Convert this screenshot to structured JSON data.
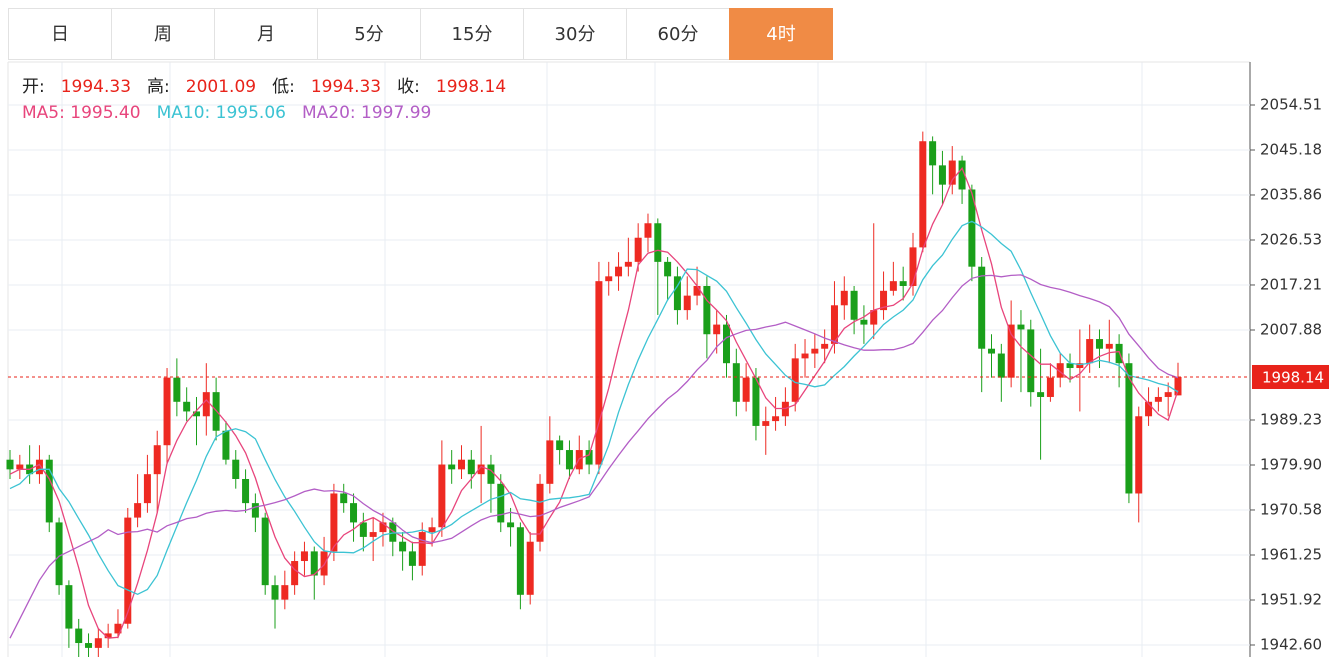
{
  "tabs": [
    "日",
    "周",
    "月",
    "5分",
    "15分",
    "30分",
    "60分",
    "4时"
  ],
  "active_tab": 7,
  "header": {
    "ohlc": [
      {
        "label": "开:",
        "value": "1994.33"
      },
      {
        "label": "高:",
        "value": "2001.09"
      },
      {
        "label": "低:",
        "value": "1994.33"
      },
      {
        "label": "收:",
        "value": "1998.14"
      }
    ]
  },
  "chart_data": {
    "type": "candlestick",
    "up_color": "#ee2a22",
    "down_color": "#1a9f1a",
    "ylim": [
      1940.11,
      2063.42
    ],
    "yticks": [
      2054.51,
      2045.18,
      2035.86,
      2026.53,
      2017.21,
      2007.88,
      1989.23,
      {
        "value": 1979.9,
        "label": "1979.90"
      },
      1970.58,
      1961.25,
      1951.92,
      {
        "value": 1942.6,
        "label": "1942.60"
      }
    ],
    "grid": true,
    "current_price": 1998.14,
    "open": [
      1981,
      1979,
      1980,
      1978,
      1981,
      1968,
      1955,
      1946,
      1943,
      1942,
      1944,
      1945,
      1947,
      1969,
      1972,
      1978,
      1984,
      1998,
      1993,
      1991,
      1990,
      1995,
      1987,
      1981,
      1977,
      1972,
      1969,
      1955,
      1952,
      1955,
      1960,
      1962,
      1957,
      1962,
      1974,
      1972,
      1968,
      1965,
      1966,
      1968,
      1964,
      1962,
      1959,
      1966,
      1967,
      1980,
      1979,
      1981,
      1978,
      1980,
      1976,
      1968,
      1967,
      1953,
      1964,
      1976,
      1985,
      1983,
      1979,
      1983,
      1980,
      2018,
      2019,
      2021,
      2022,
      2027,
      2030,
      2022,
      2019,
      2012,
      2015,
      2017,
      2007,
      2009,
      2001,
      1993,
      1998,
      1988,
      1989,
      1990,
      1993,
      2002,
      2003,
      2004,
      2005,
      2013,
      2016,
      2010,
      2009,
      2012,
      2016,
      2018,
      2017,
      2025,
      2047,
      2042,
      2038,
      2043,
      2037,
      2021,
      2004,
      2003,
      1998,
      2009,
      2008,
      1995,
      1994,
      1998,
      2001,
      2000,
      2001,
      2006,
      2004,
      2005,
      2001,
      1974,
      1990,
      1993,
      1994,
      1994.33
    ],
    "high": [
      1983,
      1982,
      1984,
      1984,
      1982,
      1969,
      1956,
      1948,
      1945,
      1946,
      1947,
      1950,
      1971,
      1978,
      1982,
      1987,
      2000,
      2002,
      1996,
      1994,
      2001,
      1998,
      1989,
      1983,
      1979,
      1974,
      1970,
      1957,
      1958,
      1962,
      1964,
      1963,
      1965,
      1976,
      1976,
      1974,
      1970,
      1969,
      1970,
      1969,
      1966,
      1964,
      1968,
      1969,
      1985,
      1983,
      1984,
      1983,
      1988,
      1982,
      1978,
      1971,
      1968,
      1966,
      1978,
      1990,
      1986,
      1985,
      1986,
      1985,
      2022,
      2022,
      2024,
      2027,
      2030,
      2032,
      2031,
      2023,
      2021,
      2019,
      2021,
      2019,
      2012,
      2011,
      2004,
      2001,
      2000,
      1992,
      1994,
      1996,
      2005,
      2006,
      2007,
      2008,
      2018,
      2019,
      2017,
      2013,
      2030,
      2020,
      2022,
      2021,
      2028,
      2049,
      2048,
      2045,
      2046,
      2044,
      2038,
      2023,
      2007,
      2005,
      2014,
      2012,
      2010,
      2004,
      2001,
      2003,
      2003,
      2008,
      2009,
      2008,
      2010,
      2007,
      2003,
      1992,
      1996,
      1996,
      1997,
      2001.09
    ],
    "low": [
      1977,
      1977,
      1976,
      1976,
      1966,
      1953,
      1942,
      1940,
      1940,
      1940,
      1942,
      1944,
      1946,
      1967,
      1970,
      1970,
      1980,
      1990,
      1989,
      1984,
      1986,
      1985,
      1980,
      1975,
      1970,
      1966,
      1953,
      1946,
      1950,
      1953,
      1957,
      1952,
      1955,
      1960,
      1970,
      1964,
      1962,
      1960,
      1963,
      1961,
      1958,
      1956,
      1957,
      1963,
      1965,
      1976,
      1977,
      1975,
      1972,
      1970,
      1966,
      1963,
      1950,
      1951,
      1962,
      1974,
      1980,
      1977,
      1978,
      1978,
      1978,
      2015,
      2016,
      2019,
      2020,
      2024,
      2011,
      2014,
      2009,
      2010,
      2013,
      2002,
      2003,
      1998,
      1990,
      1991,
      1985,
      1982,
      1987,
      1988,
      1991,
      1998,
      2000,
      2001,
      2003,
      2010,
      2007,
      2005,
      2006,
      2010,
      2015,
      2014,
      2015,
      2024,
      2036,
      2034,
      2036,
      2034,
      2018,
      1995,
      1998,
      1993,
      1996,
      1995,
      1992,
      1981,
      1993,
      1996,
      1997,
      1991,
      1999,
      2000,
      2001,
      1996,
      1972,
      1968,
      1988,
      1991,
      1990,
      1994.33
    ],
    "close": [
      1979,
      1980,
      1978,
      1981,
      1968,
      1955,
      1946,
      1943,
      1942,
      1944,
      1945,
      1947,
      1969,
      1972,
      1978,
      1984,
      1998,
      1993,
      1991,
      1990,
      1995,
      1987,
      1981,
      1977,
      1972,
      1969,
      1955,
      1952,
      1955,
      1960,
      1962,
      1957,
      1962,
      1974,
      1972,
      1968,
      1965,
      1966,
      1968,
      1964,
      1962,
      1959,
      1966,
      1967,
      1980,
      1979,
      1981,
      1978,
      1980,
      1976,
      1968,
      1967,
      1953,
      1964,
      1976,
      1985,
      1983,
      1979,
      1983,
      1980,
      2018,
      2019,
      2021,
      2022,
      2027,
      2030,
      2022,
      2019,
      2012,
      2015,
      2017,
      2007,
      2009,
      2001,
      1993,
      1998,
      1988,
      1989,
      1990,
      1993,
      2002,
      2003,
      2004,
      2005,
      2013,
      2016,
      2010,
      2009,
      2012,
      2016,
      2018,
      2017,
      2025,
      2047,
      2042,
      2038,
      2043,
      2037,
      2021,
      2004,
      2003,
      1998,
      2009,
      2008,
      1995,
      1994,
      1998,
      2001,
      2000,
      2001,
      2006,
      2004,
      2005,
      2001,
      1974,
      1990,
      1993,
      1994,
      1995,
      1998.14
    ],
    "series": [
      {
        "name": "MA5",
        "last": "1995.40",
        "color": "#e8457c",
        "values": [
          1978,
          1979,
          1979,
          1980,
          1977,
          1972.4,
          1965.6,
          1958.6,
          1950.8,
          1946,
          1944,
          1944.2,
          1949.4,
          1955.4,
          1962.2,
          1970,
          1980.2,
          1985,
          1988.8,
          1991.2,
          1993.4,
          1991.2,
          1988.8,
          1986,
          1982.4,
          1977.2,
          1970.8,
          1965,
          1960.6,
          1958.2,
          1956.8,
          1957.2,
          1959.2,
          1963,
          1965.4,
          1966.6,
          1968.2,
          1969,
          1967.8,
          1966.2,
          1965,
          1963.8,
          1963.8,
          1963.6,
          1966.8,
          1970.2,
          1974.6,
          1977,
          1979.6,
          1978.8,
          1976.6,
          1973.8,
          1968.8,
          1965.6,
          1965.6,
          1969,
          1972.2,
          1977.4,
          1981.2,
          1982,
          1988.6,
          1995.8,
          2004.2,
          2012,
          2021.4,
          2023.8,
          2024.4,
          2024,
          2022,
          2019.6,
          2017,
          2014,
          2012,
          2009.8,
          2005.4,
          2001.6,
          1997.8,
          1993.8,
          1991.6,
          1991.6,
          1992.4,
          1995.4,
          1998.4,
          2001.4,
          2005.4,
          2008.2,
          2009.6,
          2010.6,
          2012,
          2012.6,
          2013,
          2014.4,
          2017.6,
          2024.6,
          2029.8,
          2033.8,
          2039,
          2041.4,
          2036.2,
          2028.6,
          2021.6,
          2012.6,
          2007,
          2004.4,
          2002.6,
          2000.8,
          2000.8,
          1999.2,
          1997.6,
          1998.8,
          2001.2,
          2002.4,
          2003.2,
          2003.4,
          1998,
          1994.8,
          1992.6,
          1990.4,
          1989.2,
          1995.4
        ]
      },
      {
        "name": "MA10",
        "last": "1995.06",
        "color": "#3cc3d3",
        "values": [
          1975,
          1976,
          1978,
          1979,
          1979,
          1975,
          1972.3,
          1968.8,
          1965.4,
          1961.5,
          1958,
          1954.9,
          1954,
          1953.1,
          1954.1,
          1957,
          1962.2,
          1967.2,
          1972.1,
          1976.7,
          1981.7,
          1985.7,
          1986.9,
          1987.4,
          1986.8,
          1985.3,
          1981,
          1976.9,
          1973.3,
          1970.3,
          1967,
          1964,
          1962.1,
          1961.8,
          1961.8,
          1961.7,
          1962.7,
          1964.1,
          1965.4,
          1965.8,
          1965.8,
          1966,
          1966.4,
          1965.7,
          1966.5,
          1967.6,
          1969.2,
          1970.4,
          1971.6,
          1972.8,
          1973.4,
          1974.2,
          1972.9,
          1972.6,
          1972.2,
          1972.8,
          1973,
          1973.1,
          1973.4,
          1973.8,
          1978.8,
          1984,
          1990.8,
          1996.6,
          2001.7,
          2006.2,
          2010.1,
          2014.1,
          2017,
          2020.5,
          2020.4,
          2019.2,
          2018,
          2015.9,
          2012.5,
          2009.3,
          2005.9,
          2002.9,
          2000.7,
          1998.5,
          1997,
          1996.6,
          1996.1,
          1996.5,
          1998.5,
          2000.3,
          2002.5,
          2004.5,
          2006.7,
          2009,
          2010.6,
          2012,
          2014.1,
          2018.3,
          2021.2,
          2023.4,
          2026.7,
          2029.5,
          2030.4,
          2029.2,
          2027.7,
          2025.8,
          2024.2,
          2020.3,
          2015.6,
          2011.2,
          2006.7,
          2003.1,
          2001,
          2000.7,
          2001,
          2001.6,
          2001.2,
          2000.5,
          1998.4,
          1998,
          1997.5,
          1996.8,
          1996.3,
          1995.06
        ]
      },
      {
        "name": "MA20",
        "last": "1997.99",
        "color": "#b35ec6",
        "values": [
          1944,
          1948,
          1952,
          1956,
          1959,
          1961,
          1962,
          1963,
          1964,
          1965,
          1966.5,
          1965.5,
          1966,
          1966.1,
          1966.6,
          1966,
          1967.3,
          1968,
          1968.8,
          1969.1,
          1969.9,
          1970.3,
          1970.5,
          1970.3,
          1970.5,
          1971.2,
          1971.6,
          1972.1,
          1972.7,
          1973.5,
          1974.4,
          1974.9,
          1974.5,
          1974.6,
          1974.3,
          1973.5,
          1971.9,
          1970.5,
          1969.4,
          1968.1,
          1966.4,
          1965,
          1964.3,
          1963.8,
          1964.2,
          1964.7,
          1966,
          1967.3,
          1968.5,
          1969.3,
          1969.6,
          1970.1,
          1969.7,
          1969.2,
          1969.4,
          1970.2,
          1971.1,
          1971.8,
          1972.5,
          1973.3,
          1976.1,
          1979.1,
          1981.9,
          1984.6,
          1987,
          1989.5,
          1991.6,
          1993.6,
          1995.2,
          1997.2,
          1999.6,
          2001.6,
          2004.4,
          2006.3,
          2007.1,
          2007.8,
          2008,
          2008.5,
          2008.9,
          2009.5,
          2008.7,
          2007.9,
          2007.1,
          2006.2,
          2005.5,
          2004.8,
          2004.2,
          2003.7,
          2003.7,
          2003.8,
          2003.8,
          2004.3,
          2005.1,
          2007.4,
          2009.9,
          2011.9,
          2014.6,
          2017,
          2018.6,
          2019.1,
          2019.2,
          2018.9,
          2019.2,
          2019.3,
          2018.4,
          2017.3,
          2016.7,
          2016.3,
          2015.7,
          2015,
          2014.4,
          2013.7,
          2012.7,
          2010.4,
          2007,
          2004.6,
          2002.1,
          1999.9,
          1998.7,
          1997.99
        ]
      }
    ]
  }
}
